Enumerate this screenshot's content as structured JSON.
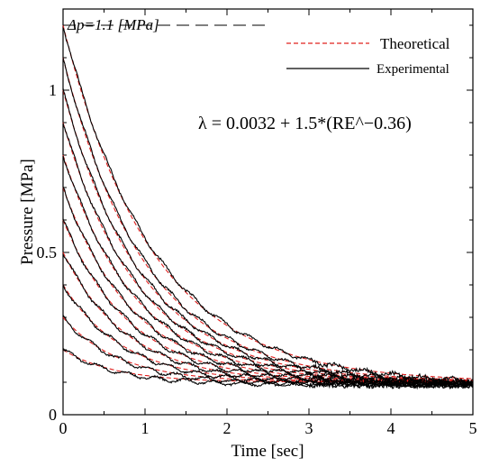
{
  "chart_data": {
    "type": "line",
    "title": "",
    "xlabel": "Time [sec]",
    "ylabel": "Pressure [MPa]",
    "xlim": [
      0,
      5
    ],
    "ylim": [
      0,
      1.25
    ],
    "x_ticks": [
      "0",
      "1",
      "2",
      "3",
      "4",
      "5"
    ],
    "y_ticks": [
      "0",
      "0.5",
      "1"
    ],
    "grid": false,
    "legend_position": "top-right",
    "legend": [
      {
        "label": "Theoretical",
        "style": "dashed",
        "color": "#e0201e"
      },
      {
        "label": "Experimental",
        "style": "solid",
        "color": "#000000"
      }
    ],
    "annotations": {
      "dp_label": "Δp=1.1  [MPa]",
      "dp_level": 1.2,
      "equation": "λ = 0.0032 + 1.5*(RE^−0.36)"
    },
    "final_pressure": 0.1,
    "series": [
      {
        "initial_pressure": 0.2,
        "decay_rate": 1.55
      },
      {
        "initial_pressure": 0.3,
        "decay_rate": 1.45
      },
      {
        "initial_pressure": 0.4,
        "decay_rate": 1.35
      },
      {
        "initial_pressure": 0.5,
        "decay_rate": 1.28
      },
      {
        "initial_pressure": 0.6,
        "decay_rate": 1.22
      },
      {
        "initial_pressure": 0.7,
        "decay_rate": 1.17
      },
      {
        "initial_pressure": 0.8,
        "decay_rate": 1.12
      },
      {
        "initial_pressure": 0.9,
        "decay_rate": 1.08
      },
      {
        "initial_pressure": 1.0,
        "decay_rate": 1.04
      },
      {
        "initial_pressure": 1.1,
        "decay_rate": 1.0
      },
      {
        "initial_pressure": 1.2,
        "decay_rate": 0.92
      }
    ]
  }
}
